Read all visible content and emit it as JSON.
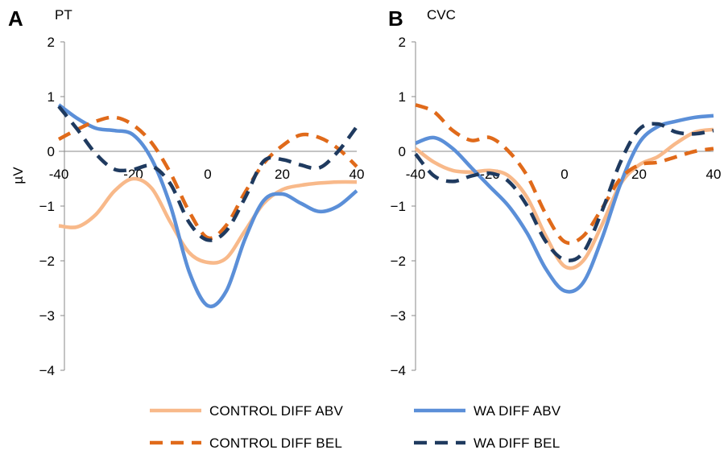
{
  "chart_data": [
    {
      "type": "line",
      "panel_letter": "A",
      "title": "PT",
      "ylabel": "µV",
      "xlabel": "",
      "xlim": [
        -40,
        40
      ],
      "ylim": [
        -4,
        2
      ],
      "xticks": [
        -40,
        -20,
        0,
        20,
        40
      ],
      "yticks": [
        2,
        1,
        0,
        -1,
        -2,
        -3,
        -4
      ],
      "grid": false,
      "series": [
        {
          "name": "CONTROL DIFF ABV",
          "color": "#f8b98a",
          "style": "solid",
          "x": [
            -40,
            -35,
            -30,
            -25,
            -20,
            -15,
            -10,
            -5,
            0,
            5,
            10,
            15,
            20,
            25,
            30,
            35,
            40
          ],
          "y": [
            -1.36,
            -1.38,
            -1.15,
            -0.72,
            -0.5,
            -0.68,
            -1.3,
            -1.85,
            -2.03,
            -1.95,
            -1.45,
            -0.95,
            -0.7,
            -0.62,
            -0.58,
            -0.56,
            -0.56
          ]
        },
        {
          "name": "WA DIFF ABV",
          "color": "#5b8fd8",
          "style": "solid",
          "x": [
            -40,
            -35,
            -30,
            -25,
            -20,
            -15,
            -10,
            -5,
            0,
            5,
            10,
            15,
            20,
            25,
            30,
            35,
            40
          ],
          "y": [
            0.85,
            0.6,
            0.42,
            0.38,
            0.3,
            -0.15,
            -1.0,
            -2.2,
            -2.82,
            -2.55,
            -1.6,
            -0.9,
            -0.78,
            -0.95,
            -1.1,
            -1.0,
            -0.72
          ]
        },
        {
          "name": "CONTROL DIFF BEL",
          "color": "#e06a1a",
          "style": "dashed",
          "x": [
            -40,
            -35,
            -30,
            -25,
            -20,
            -15,
            -10,
            -5,
            0,
            5,
            10,
            15,
            20,
            25,
            30,
            35,
            40
          ],
          "y": [
            0.22,
            0.4,
            0.55,
            0.62,
            0.48,
            0.15,
            -0.4,
            -1.1,
            -1.58,
            -1.35,
            -0.75,
            -0.22,
            0.1,
            0.3,
            0.25,
            0.05,
            -0.28
          ]
        },
        {
          "name": "WA DIFF BEL",
          "color": "#1f3a5f",
          "style": "dashed",
          "x": [
            -40,
            -35,
            -30,
            -25,
            -20,
            -15,
            -10,
            -5,
            0,
            5,
            10,
            15,
            20,
            25,
            30,
            35,
            40
          ],
          "y": [
            0.82,
            0.4,
            -0.05,
            -0.33,
            -0.33,
            -0.27,
            -0.6,
            -1.3,
            -1.62,
            -1.45,
            -0.85,
            -0.18,
            -0.15,
            -0.25,
            -0.3,
            0.0,
            0.45
          ]
        }
      ]
    },
    {
      "type": "line",
      "panel_letter": "B",
      "title": "CVC",
      "ylabel": "",
      "xlabel": "",
      "xlim": [
        -40,
        40
      ],
      "ylim": [
        -4,
        2
      ],
      "xticks": [
        -40,
        -20,
        0,
        20,
        40
      ],
      "yticks": [
        2,
        1,
        0,
        -1,
        -2,
        -3,
        -4
      ],
      "grid": false,
      "series": [
        {
          "name": "CONTROL DIFF ABV",
          "color": "#f8b98a",
          "style": "solid",
          "x": [
            -40,
            -35,
            -30,
            -25,
            -20,
            -15,
            -10,
            -5,
            0,
            5,
            10,
            15,
            20,
            25,
            30,
            35,
            40
          ],
          "y": [
            0.05,
            -0.2,
            -0.35,
            -0.38,
            -0.35,
            -0.45,
            -0.85,
            -1.55,
            -2.1,
            -2.0,
            -1.35,
            -0.6,
            -0.25,
            -0.1,
            0.15,
            0.35,
            0.4
          ]
        },
        {
          "name": "WA DIFF ABV",
          "color": "#5b8fd8",
          "style": "solid",
          "x": [
            -40,
            -35,
            -30,
            -25,
            -20,
            -15,
            -10,
            -5,
            0,
            5,
            10,
            15,
            20,
            25,
            30,
            35,
            40
          ],
          "y": [
            0.15,
            0.25,
            0.05,
            -0.3,
            -0.65,
            -1.0,
            -1.5,
            -2.15,
            -2.55,
            -2.4,
            -1.6,
            -0.6,
            0.15,
            0.45,
            0.55,
            0.62,
            0.65
          ]
        },
        {
          "name": "CONTROL DIFF BEL",
          "color": "#e06a1a",
          "style": "dashed",
          "x": [
            -40,
            -35,
            -30,
            -25,
            -20,
            -15,
            -10,
            -5,
            0,
            5,
            10,
            15,
            20,
            25,
            30,
            35,
            40
          ],
          "y": [
            0.85,
            0.72,
            0.38,
            0.2,
            0.25,
            0.0,
            -0.45,
            -1.15,
            -1.65,
            -1.55,
            -1.05,
            -0.5,
            -0.25,
            -0.2,
            -0.1,
            0.0,
            0.05
          ]
        },
        {
          "name": "WA DIFF BEL",
          "color": "#1f3a5f",
          "style": "dashed",
          "x": [
            -40,
            -35,
            -30,
            -25,
            -20,
            -15,
            -10,
            -5,
            0,
            5,
            10,
            15,
            20,
            25,
            30,
            35,
            40
          ],
          "y": [
            -0.05,
            -0.45,
            -0.55,
            -0.45,
            -0.4,
            -0.55,
            -1.0,
            -1.65,
            -1.98,
            -1.85,
            -1.1,
            -0.2,
            0.4,
            0.5,
            0.35,
            0.32,
            0.38
          ]
        }
      ]
    }
  ],
  "legend": {
    "items": [
      {
        "label": "CONTROL DIFF ABV",
        "color": "#f8b98a",
        "style": "solid"
      },
      {
        "label": "WA DIFF ABV",
        "color": "#5b8fd8",
        "style": "solid"
      },
      {
        "label": "CONTROL DIFF BEL",
        "color": "#e06a1a",
        "style": "dashed"
      },
      {
        "label": "WA DIFF BEL",
        "color": "#1f3a5f",
        "style": "dashed"
      }
    ]
  }
}
